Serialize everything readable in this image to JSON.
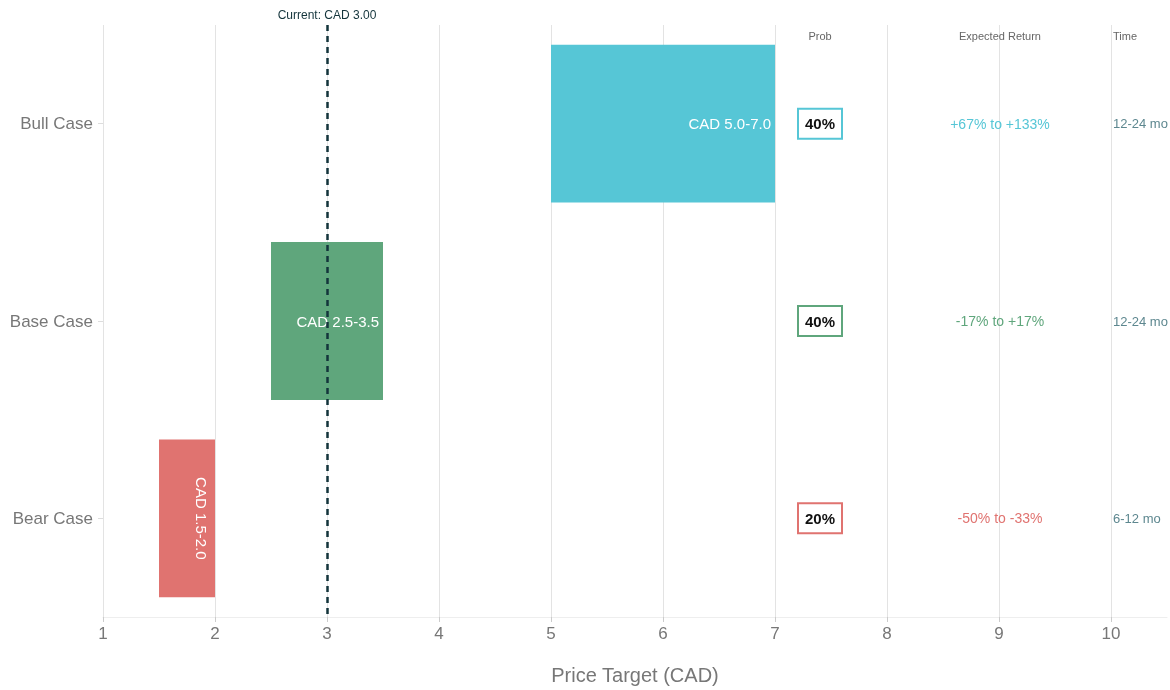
{
  "chart_data": {
    "type": "bar",
    "orientation": "horizontal",
    "xlabel": "Price Target (CAD)",
    "categories": [
      "Bull Case",
      "Base Case",
      "Bear Case"
    ],
    "base": [
      5,
      2.5,
      1.5
    ],
    "values": [
      2,
      1,
      0.5
    ],
    "colors": [
      "#56c6d6",
      "#5fa67c",
      "#e07370"
    ],
    "value_labels": [
      "CAD 5.0-7.0",
      "CAD 2.5-3.5",
      "CAD 1.5-2.0"
    ],
    "xlim": [
      1,
      10.5
    ],
    "xticks": [
      1,
      2,
      3,
      4,
      5,
      6,
      7,
      8,
      9,
      10
    ],
    "grid": "x",
    "ref_lines": [
      {
        "axis": "x",
        "value": 3,
        "label": "Current: CAD 3.00",
        "color": "#13343b",
        "line_style": "dashed"
      }
    ],
    "annotations": [
      "Prob",
      "Expected Return",
      "Time",
      "40%",
      "+67% to +133%",
      "12-24 mo",
      "40%",
      "-17% to +17%",
      "12-24 mo",
      "20%",
      "-50% to -33%",
      "6-12 mo"
    ]
  }
}
